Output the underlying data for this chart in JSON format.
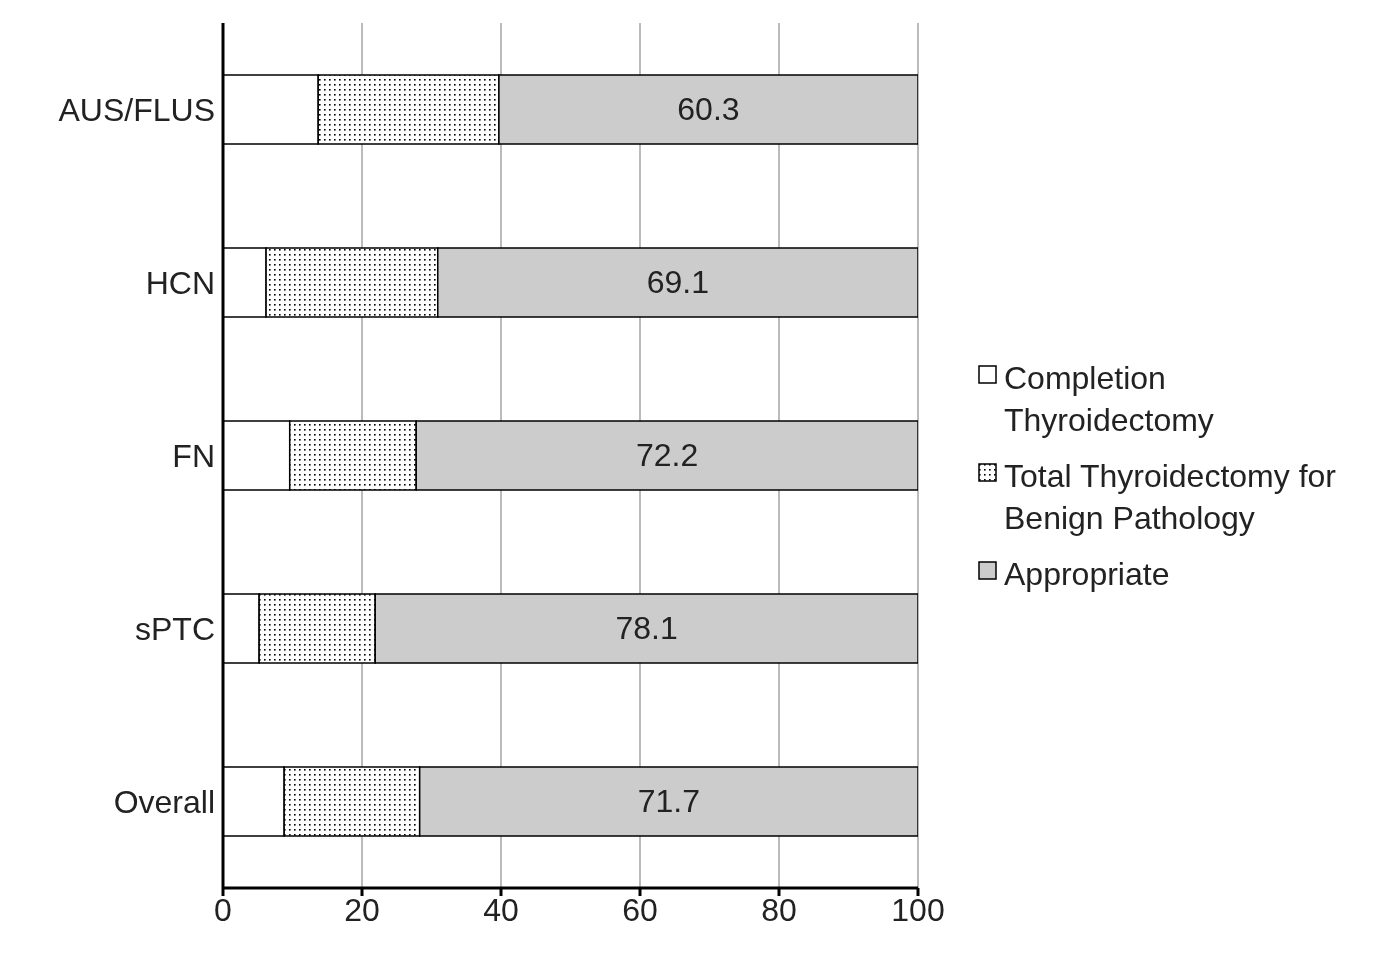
{
  "chart_data": {
    "type": "bar",
    "orientation": "horizontal",
    "stacked": true,
    "categories": [
      "AUS/FLUS",
      "HCN",
      "FN",
      "sPTC",
      "Overall"
    ],
    "series": [
      {
        "name": "Completion Thyroidectomy",
        "color": "#ffffff",
        "values": [
          13.7,
          6.2,
          9.6,
          5.2,
          8.8
        ]
      },
      {
        "name": "Total Thyroidectomy for Benign Pathology",
        "color": "#000000",
        "values": [
          26.0,
          24.7,
          18.2,
          16.7,
          19.5
        ]
      },
      {
        "name": "Appropriate",
        "color": "#cccccc",
        "values": [
          60.3,
          69.1,
          72.2,
          78.1,
          71.7
        ],
        "value_labels": [
          "60.3",
          "69.1",
          "72.2",
          "78.1",
          "71.7"
        ]
      }
    ],
    "xlim": [
      0,
      100
    ],
    "xticks": [
      0,
      20,
      40,
      60,
      80,
      100
    ],
    "grid": "x",
    "legend": "right"
  }
}
